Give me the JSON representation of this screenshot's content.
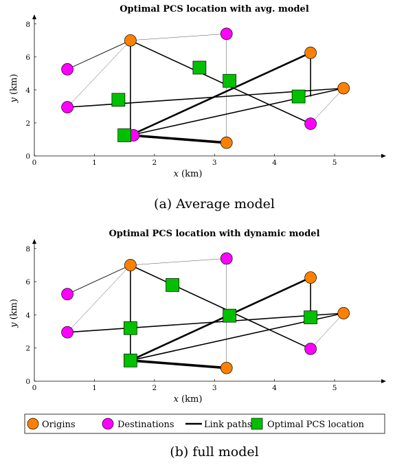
{
  "chart_data": [
    {
      "type": "scatter",
      "title": "Optimal PCS location with avg. model",
      "caption": "(a) Average model",
      "xlabel_var": "x",
      "xlabel_unit": " (km)",
      "ylabel_var": "y",
      "ylabel_unit": " (km)",
      "xlim": [
        0,
        5.8
      ],
      "ylim": [
        0,
        8.2
      ],
      "xticks": [
        "0",
        "1",
        "2",
        "3",
        "4",
        "5"
      ],
      "yticks": [
        "0",
        "2",
        "4",
        "6",
        "8"
      ],
      "origins": [
        [
          1.6,
          7.0
        ],
        [
          4.6,
          6.25
        ],
        [
          5.15,
          4.1
        ],
        [
          3.2,
          0.8
        ]
      ],
      "destinations": [
        [
          0.55,
          5.25
        ],
        [
          3.2,
          7.4
        ],
        [
          0.55,
          2.95
        ],
        [
          4.6,
          1.95
        ],
        [
          1.65,
          1.25
        ]
      ],
      "pcs": [
        [
          2.75,
          5.35
        ],
        [
          3.25,
          4.55
        ],
        [
          1.4,
          3.4
        ],
        [
          4.4,
          3.6
        ],
        [
          1.5,
          1.25
        ]
      ],
      "links": [
        {
          "from": [
            1.6,
            7.0
          ],
          "to": [
            3.2,
            7.4
          ],
          "weight": "thin"
        },
        {
          "from": [
            3.2,
            7.4
          ],
          "to": [
            3.2,
            0.8
          ],
          "weight": "thin"
        },
        {
          "from": [
            0.55,
            2.95
          ],
          "to": [
            1.6,
            7.0
          ],
          "weight": "thin"
        },
        {
          "from": [
            4.6,
            1.95
          ],
          "to": [
            5.15,
            4.1
          ],
          "weight": "thin"
        },
        {
          "from": [
            0.55,
            5.25
          ],
          "to": [
            1.6,
            7.0
          ],
          "weight": "normal"
        },
        {
          "from": [
            1.6,
            7.0
          ],
          "to": [
            1.6,
            1.25
          ],
          "weight": "medium"
        },
        {
          "from": [
            1.6,
            7.0
          ],
          "to": [
            4.6,
            1.95
          ],
          "weight": "medium"
        },
        {
          "from": [
            4.6,
            6.25
          ],
          "to": [
            4.6,
            3.6
          ],
          "weight": "medium"
        },
        {
          "from": [
            0.55,
            2.95
          ],
          "to": [
            5.15,
            4.1
          ],
          "weight": "medium"
        },
        {
          "from": [
            1.6,
            1.25
          ],
          "to": [
            5.15,
            4.1
          ],
          "weight": "medium"
        },
        {
          "from": [
            1.6,
            1.25
          ],
          "to": [
            4.6,
            6.25
          ],
          "weight": "thick"
        },
        {
          "from": [
            1.6,
            1.25
          ],
          "to": [
            3.2,
            0.8
          ],
          "weight": "heavy"
        }
      ]
    },
    {
      "type": "scatter",
      "title": "Optimal PCS location with dynamic model",
      "caption": "(b) full model",
      "xlabel_var": "x",
      "xlabel_unit": " (km)",
      "ylabel_var": "y",
      "ylabel_unit": " (km)",
      "xlim": [
        0,
        5.8
      ],
      "ylim": [
        0,
        8.2
      ],
      "xticks": [
        "0",
        "1",
        "2",
        "3",
        "4",
        "5"
      ],
      "yticks": [
        "0",
        "2",
        "4",
        "6",
        "8"
      ],
      "origins": [
        [
          1.6,
          7.0
        ],
        [
          4.6,
          6.25
        ],
        [
          5.15,
          4.1
        ],
        [
          3.2,
          0.8
        ]
      ],
      "destinations": [
        [
          0.55,
          5.25
        ],
        [
          3.2,
          7.4
        ],
        [
          0.55,
          2.95
        ],
        [
          4.6,
          1.95
        ]
      ],
      "pcs": [
        [
          2.3,
          5.8
        ],
        [
          3.25,
          3.95
        ],
        [
          1.6,
          3.2
        ],
        [
          4.6,
          3.85
        ],
        [
          1.6,
          1.25
        ]
      ],
      "links": [
        {
          "from": [
            1.6,
            7.0
          ],
          "to": [
            3.2,
            7.4
          ],
          "weight": "thin"
        },
        {
          "from": [
            3.2,
            7.4
          ],
          "to": [
            3.2,
            0.8
          ],
          "weight": "thin"
        },
        {
          "from": [
            0.55,
            2.95
          ],
          "to": [
            1.6,
            7.0
          ],
          "weight": "thin"
        },
        {
          "from": [
            4.6,
            1.95
          ],
          "to": [
            5.15,
            4.1
          ],
          "weight": "thin"
        },
        {
          "from": [
            0.55,
            5.25
          ],
          "to": [
            1.6,
            7.0
          ],
          "weight": "normal"
        },
        {
          "from": [
            1.6,
            7.0
          ],
          "to": [
            1.6,
            1.25
          ],
          "weight": "medium"
        },
        {
          "from": [
            1.6,
            7.0
          ],
          "to": [
            4.6,
            1.95
          ],
          "weight": "medium"
        },
        {
          "from": [
            4.6,
            6.25
          ],
          "to": [
            4.6,
            3.85
          ],
          "weight": "medium"
        },
        {
          "from": [
            0.55,
            2.95
          ],
          "to": [
            5.15,
            4.1
          ],
          "weight": "medium"
        },
        {
          "from": [
            1.6,
            1.25
          ],
          "to": [
            5.15,
            4.1
          ],
          "weight": "medium"
        },
        {
          "from": [
            1.6,
            1.25
          ],
          "to": [
            4.6,
            6.25
          ],
          "weight": "thick"
        },
        {
          "from": [
            1.6,
            1.25
          ],
          "to": [
            3.2,
            0.8
          ],
          "weight": "heavy"
        }
      ]
    }
  ],
  "legend": {
    "origins": "Origins",
    "destinations": "Destinations",
    "links": "Link paths",
    "pcs": "Optimal PCS location"
  },
  "colors": {
    "origin": "#FF8000",
    "destination": "#FF00FF",
    "pcs": "#00C000",
    "line": "#000000"
  }
}
